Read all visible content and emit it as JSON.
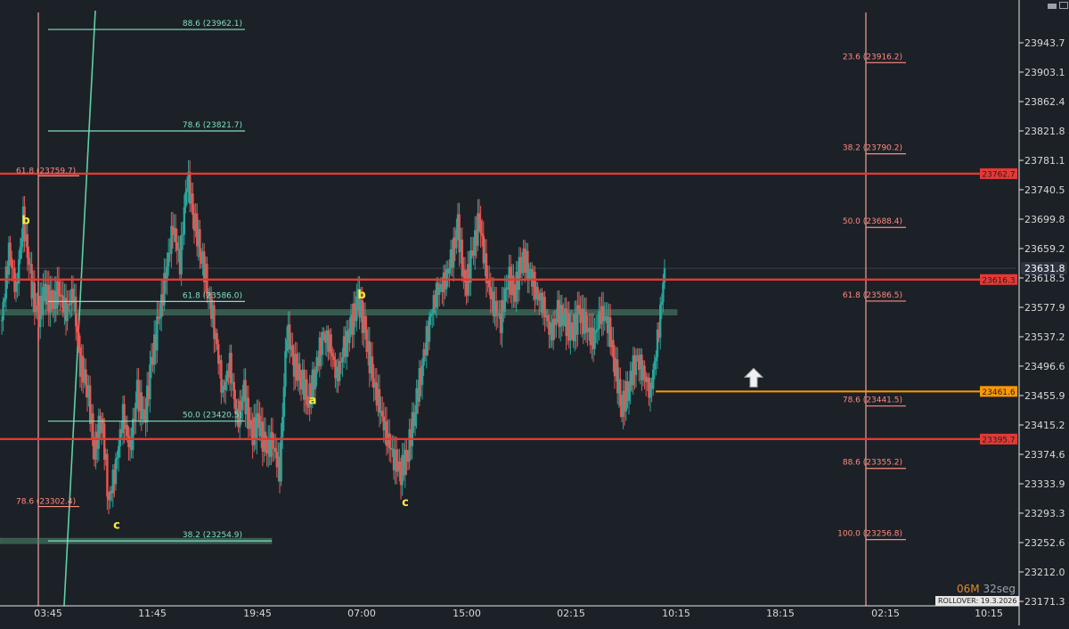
{
  "window": {
    "minimize_icon": "minimize-icon",
    "close_icon": "maximize-icon"
  },
  "timer": {
    "minutes": "06M",
    "seconds": "32seg"
  },
  "rollover": "ROLLOVER: 19.3.2026",
  "chart_data": {
    "type": "candlestick",
    "title": "",
    "xlabel": "",
    "ylabel": "",
    "grid": false,
    "ylim": [
      23150.0,
      23985.0
    ],
    "y_ticks": [
      23943.7,
      23903.1,
      23862.4,
      23821.8,
      23781.1,
      23740.5,
      23699.8,
      23659.2,
      23618.5,
      23577.9,
      23537.2,
      23496.6,
      23455.9,
      23415.2,
      23374.6,
      23333.9,
      23293.3,
      23252.6,
      23212.0,
      23171.3
    ],
    "x_ticks": [
      "03:45",
      "11:45",
      "19:45",
      "07:00",
      "15:00",
      "02:15",
      "10:15",
      "18:15",
      "02:15",
      "10:15"
    ],
    "last_price": {
      "value": 23631.8,
      "label": "23631.8"
    },
    "colors": {
      "up": "#26a69a",
      "down": "#ef5350",
      "level": "#e53935",
      "fib_left": "#7ee0c0",
      "fib_right": "#ff8a80",
      "vline": "#f4a29a",
      "orange": "#ff9800",
      "wave": "#ffeb3b"
    },
    "horizontal_levels": [
      {
        "value": 23762.7,
        "label": "23762.7",
        "color": "#e53935"
      },
      {
        "value": 23616.3,
        "label": "23616.3",
        "color": "#e53935"
      },
      {
        "value": 23461.6,
        "label": "23461.6",
        "color": "#ff9800"
      },
      {
        "value": 23395.7,
        "label": "23395.7",
        "color": "#e53935"
      }
    ],
    "zones": [
      {
        "value": 23571.0
      },
      {
        "value": 23254.9
      }
    ],
    "fib_left": [
      {
        "text": "88.6 (23962.1)",
        "value": 23962.1
      },
      {
        "text": "78.6 (23821.7)",
        "value": 23821.7
      },
      {
        "text": "61.8 (23586.0)",
        "value": 23586.0
      },
      {
        "text": "50.0 (23420.5)",
        "value": 23420.5
      },
      {
        "text": "38.2 (23254.9)",
        "value": 23254.9
      }
    ],
    "fib_far_left": [
      {
        "text": "61.8 (23759.7)",
        "value": 23759.7
      },
      {
        "text": "78.6 (23302.4)",
        "value": 23302.4
      }
    ],
    "fib_right": [
      {
        "text": "23.6 (23916.2)",
        "value": 23916.2
      },
      {
        "text": "38.2 (23790.2)",
        "value": 23790.2
      },
      {
        "text": "50.0 (23688.4)",
        "value": 23688.4
      },
      {
        "text": "61.8 (23586.5)",
        "value": 23586.5
      },
      {
        "text": "78.6 (23441.5)",
        "value": 23441.5
      },
      {
        "text": "88.6 (23355.2)",
        "value": 23355.2
      },
      {
        "text": "100.0 (23256.8)",
        "value": 23256.8
      }
    ],
    "wave_labels": [
      {
        "text": "b",
        "value": 23693.0
      },
      {
        "text": "c",
        "value": 23272.0
      },
      {
        "text": "a",
        "value": 23444.0
      },
      {
        "text": "b",
        "value": 23590.0
      },
      {
        "text": "c",
        "value": 23303.0
      }
    ],
    "vertical_lines": [
      {
        "x": "03:45"
      },
      {
        "x": "02:15"
      }
    ],
    "arrow": {
      "value": 23480.0,
      "direction": "up"
    },
    "anchors": [
      [
        23560,
        23660,
        23600,
        23700,
        23620,
        23560,
        23600,
        23580,
        23600,
        23570,
        23600
      ],
      [
        23500,
        23470,
        23380,
        23430,
        23310,
        23360,
        23430,
        23380,
        23460
      ],
      [
        23420,
        23500,
        23560,
        23620,
        23690,
        23640,
        23760,
        23700,
        23650,
        23600
      ],
      [
        23540,
        23460,
        23500,
        23420,
        23460,
        23400,
        23420,
        23380,
        23390,
        23350
      ],
      [
        23550,
        23500,
        23480,
        23450,
        23490,
        23540,
        23530,
        23480,
        23520,
        23550,
        23590
      ],
      [
        23540,
        23480,
        23440,
        23400,
        23370,
        23350,
        23380,
        23440,
        23500,
        23560,
        23600,
        23610
      ],
      [
        23640,
        23690,
        23600,
        23650,
        23700,
        23620,
        23580,
        23560,
        23620,
        23600,
        23650,
        23630,
        23600,
        23580
      ],
      [
        23540,
        23570,
        23560,
        23540,
        23570,
        23550,
        23530,
        23570,
        23560,
        23500,
        23440,
        23470,
        23510,
        23490,
        23460,
        23530,
        23631.8
      ]
    ]
  }
}
